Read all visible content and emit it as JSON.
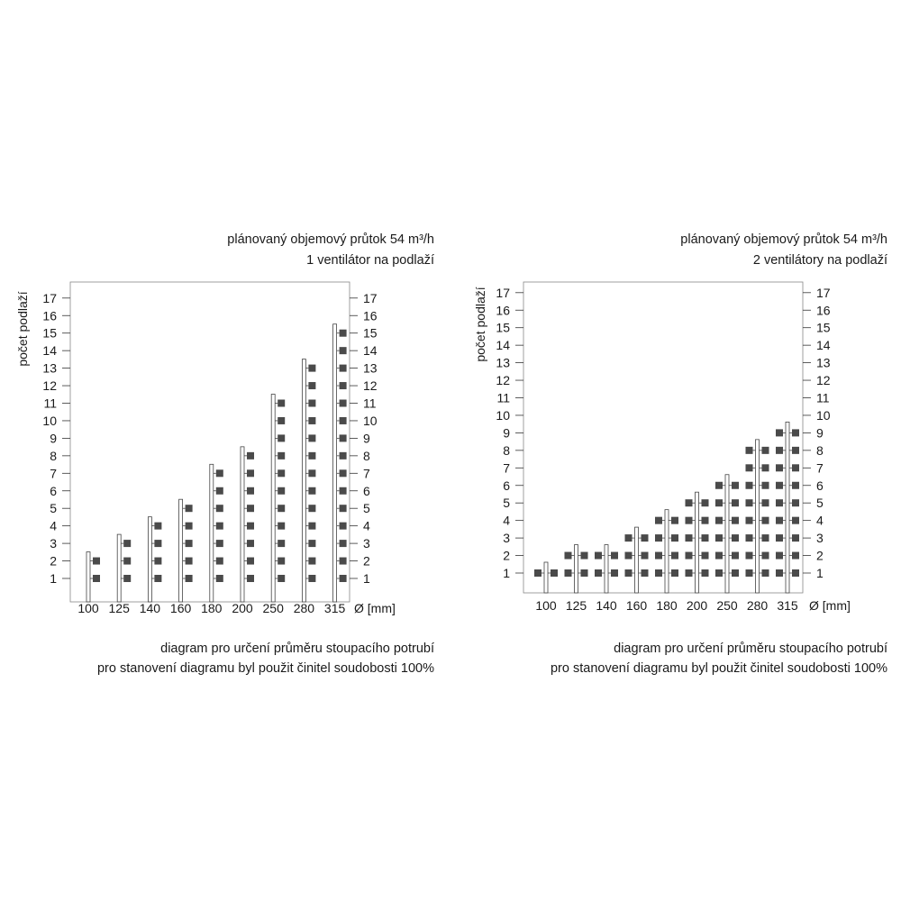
{
  "chart_data": [
    {
      "type": "bar",
      "description_lines": [
        "plánovaný objemový průtok 54 m³/h",
        "1 ventilátor na podlaží"
      ],
      "footer_lines": [
        "diagram pro určení průměru stoupacího potrubí",
        "pro stanovení diagramu byl použit činitel soudobosti 100%"
      ],
      "ylabel": "počet podlaží",
      "xlabel": "Ø [mm]",
      "categories": [
        "100",
        "125",
        "140",
        "160",
        "180",
        "200",
        "250",
        "280",
        "315"
      ],
      "values": [
        2,
        3,
        4,
        5,
        7,
        8,
        11,
        13,
        15
      ],
      "ylim": [
        0,
        17
      ],
      "y_ticks": [
        1,
        2,
        3,
        4,
        5,
        6,
        7,
        8,
        9,
        10,
        11,
        12,
        13,
        14,
        15,
        16,
        17
      ],
      "fans_per_floor": 1,
      "fan_color": "#4a4a4a"
    },
    {
      "type": "bar",
      "description_lines": [
        "plánovaný objemový průtok 54 m³/h",
        "2 ventilátory na podlaží"
      ],
      "footer_lines": [
        "diagram pro určení průměru stoupacího potrubí",
        "pro stanovení diagramu byl použit činitel soudobosti 100%"
      ],
      "ylabel": "počet podlaží",
      "xlabel": "Ø [mm]",
      "categories": [
        "100",
        "125",
        "140",
        "160",
        "180",
        "200",
        "250",
        "280",
        "315"
      ],
      "values": [
        1,
        2,
        2,
        3,
        4,
        5,
        6,
        8,
        9
      ],
      "ylim": [
        0,
        17
      ],
      "y_ticks": [
        1,
        2,
        3,
        4,
        5,
        6,
        7,
        8,
        9,
        10,
        11,
        12,
        13,
        14,
        15,
        16,
        17
      ],
      "fans_per_floor": 2,
      "fan_color": "#4a4a4a"
    }
  ]
}
